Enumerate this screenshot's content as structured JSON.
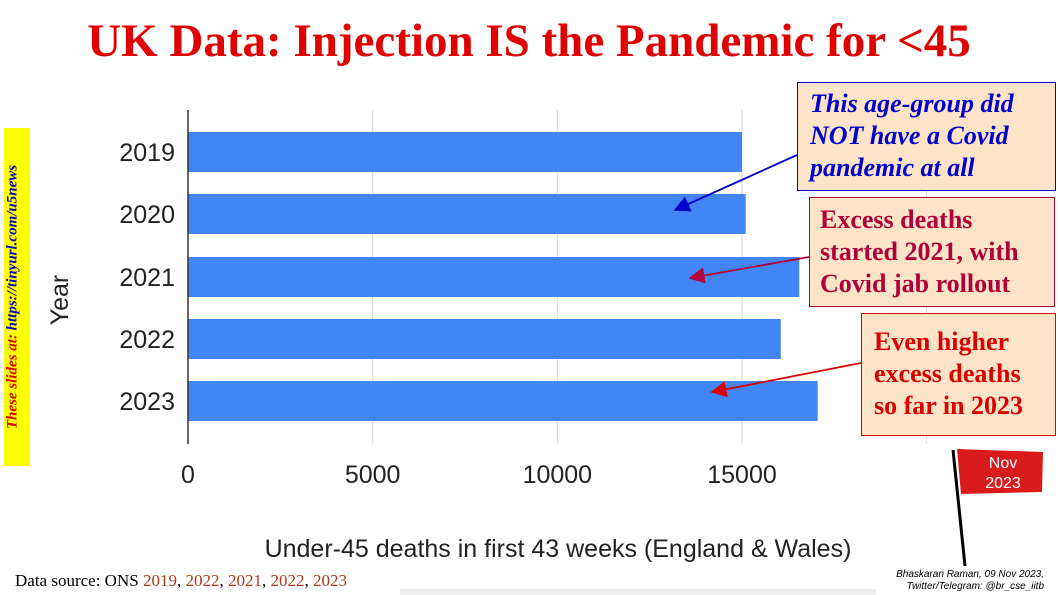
{
  "title": "UK Data: Injection IS the Pandemic for <45",
  "sidebar": {
    "prefix": "These slides at: ",
    "url": "https://tinyurl.com/u5news"
  },
  "chart_data": {
    "type": "bar",
    "orientation": "horizontal",
    "categories": [
      "2019",
      "2020",
      "2021",
      "2022",
      "2023"
    ],
    "values": [
      15000,
      15100,
      16550,
      16050,
      17050
    ],
    "xlabel": "Under-45 deaths in first 43 weeks (England & Wales)",
    "ylabel": "Year",
    "xticks": [
      "0",
      "5000",
      "10000",
      "15000"
    ],
    "xlim": [
      0,
      20000
    ],
    "grid": true,
    "bar_color": "#4285f4"
  },
  "callouts": [
    {
      "lines": [
        "This age-group did",
        "NOT have a Covid",
        "pandemic at all"
      ],
      "color": "#0000cc"
    },
    {
      "lines": [
        "Excess deaths",
        "started 2021, with",
        "Covid jab rollout"
      ],
      "color": "#b00038"
    },
    {
      "lines": [
        "Even higher",
        "excess deaths",
        "so far in 2023"
      ],
      "color": "#d80000"
    }
  ],
  "flag": {
    "line1": "Nov",
    "line2": "2023",
    "color": "#d81c1c"
  },
  "source": {
    "label": "Data source: ONS ",
    "years": [
      "2019",
      "2022",
      "2021",
      "2022",
      "2023"
    ],
    "separator": ", "
  },
  "credit": {
    "line1": "Bhaskaran Raman, 09 Nov 2023,",
    "line2": "Twitter/Telegram: @br_cse_iitb"
  }
}
